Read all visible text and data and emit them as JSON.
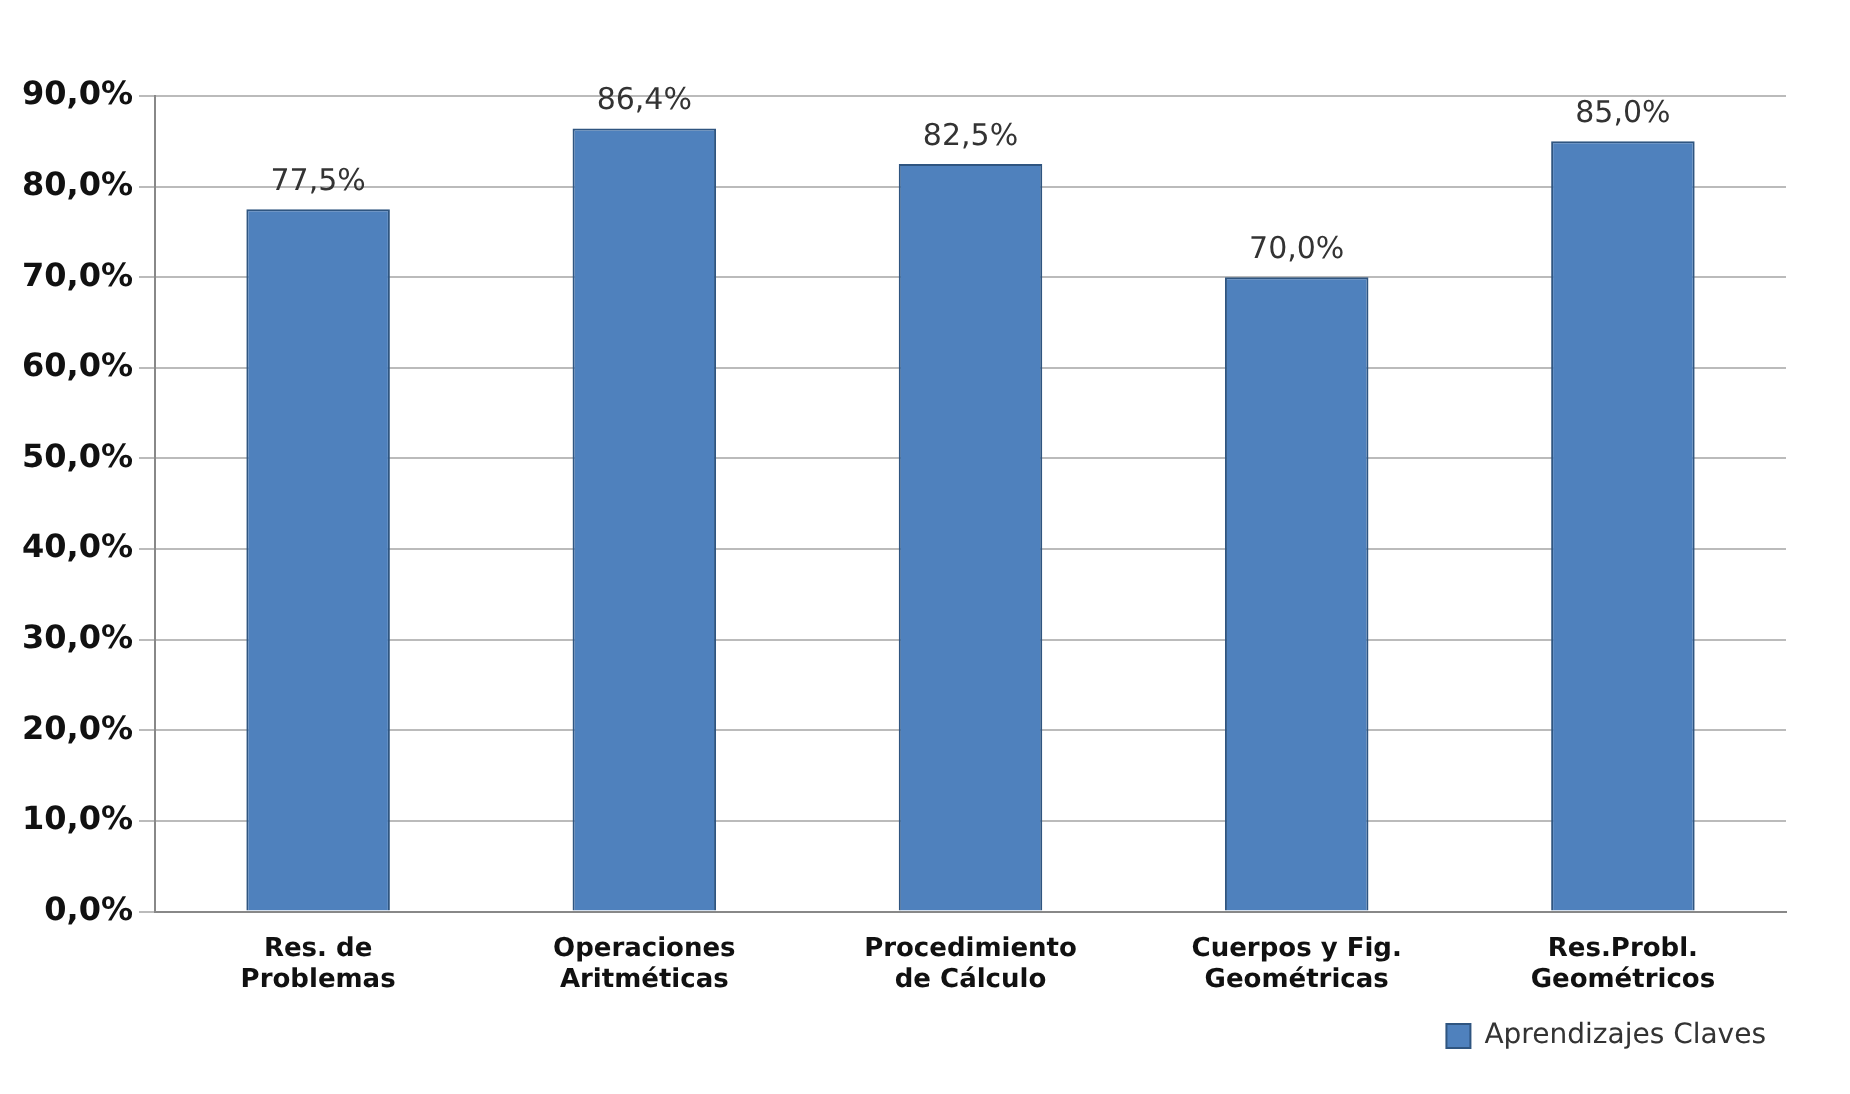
{
  "chart_data": {
    "type": "bar",
    "categories": [
      "Res. de\nProblemas",
      "Operaciones\nAritméticas",
      "Procedimiento\nde Cálculo",
      "Cuerpos y Fig.\nGeométricas",
      "Res.Probl.\nGeométricos"
    ],
    "series": [
      {
        "name": "Aprendizajes Claves",
        "color": "#4f81bd",
        "values": [
          77.5,
          86.4,
          82.5,
          70.0,
          85.0
        ],
        "value_labels": [
          "77,5%",
          "86,4%",
          "82,5%",
          "70,0%",
          "85,0%"
        ]
      }
    ],
    "ylim": [
      0,
      90
    ],
    "yticks": [
      {
        "value": 0,
        "label": "0,0%"
      },
      {
        "value": 10,
        "label": "10,0%"
      },
      {
        "value": 20,
        "label": "20,0%"
      },
      {
        "value": 30,
        "label": "30,0%"
      },
      {
        "value": 40,
        "label": "40,0%"
      },
      {
        "value": 50,
        "label": "50,0%"
      },
      {
        "value": 60,
        "label": "60,0%"
      },
      {
        "value": 70,
        "label": "70,0%"
      },
      {
        "value": 80,
        "label": "80,0%"
      },
      {
        "value": 90,
        "label": "90,0%"
      }
    ],
    "grid": "y",
    "legend": "bottom right"
  }
}
